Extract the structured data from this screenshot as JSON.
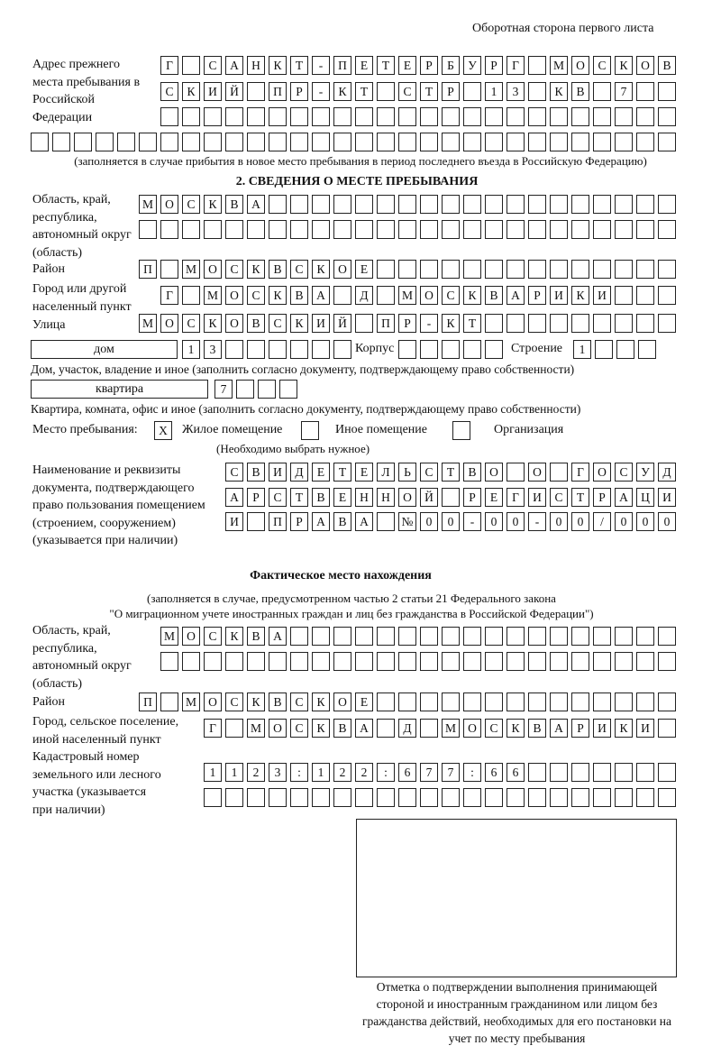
{
  "header": "Оборотная сторона первого листа",
  "prev_address": {
    "label": "Адрес прежнего места пребывания в Российской Федерации",
    "rows": [
      [
        "Г",
        "",
        "С",
        "А",
        "Н",
        "К",
        "Т",
        "-",
        "П",
        "Е",
        "Т",
        "Е",
        "Р",
        "Б",
        "У",
        "Р",
        "Г",
        "",
        "М",
        "О",
        "С",
        "К",
        "О",
        "В"
      ],
      [
        "С",
        "К",
        "И",
        "Й",
        "",
        "П",
        "Р",
        "-",
        "К",
        "Т",
        "",
        "С",
        "Т",
        "Р",
        "",
        "1",
        "3",
        "",
        "К",
        "В",
        "",
        "7",
        "",
        ""
      ],
      [
        "",
        "",
        "",
        "",
        "",
        "",
        "",
        "",
        "",
        "",
        "",
        "",
        "",
        "",
        "",
        "",
        "",
        "",
        "",
        "",
        "",
        "",
        "",
        ""
      ],
      [
        "",
        "",
        "",
        "",
        "",
        "",
        "",
        "",
        "",
        "",
        "",
        "",
        "",
        "",
        "",
        "",
        "",
        "",
        "",
        "",
        "",
        "",
        "",
        "",
        "",
        "",
        "",
        "",
        "",
        ""
      ]
    ],
    "note": "(заполняется в случае прибытия в новое место пребывания в период последнего въезда в Российскую Федерацию)"
  },
  "section2": {
    "title": "2. СВЕДЕНИЯ О МЕСТЕ ПРЕБЫВАНИЯ",
    "region_label": "Область, край, республика, автономный округ (область)",
    "region_rows": [
      [
        "М",
        "О",
        "С",
        "К",
        "В",
        "А",
        "",
        "",
        "",
        "",
        "",
        "",
        "",
        "",
        "",
        "",
        "",
        "",
        "",
        "",
        "",
        "",
        "",
        "",
        ""
      ],
      [
        "",
        "",
        "",
        "",
        "",
        "",
        "",
        "",
        "",
        "",
        "",
        "",
        "",
        "",
        "",
        "",
        "",
        "",
        "",
        "",
        "",
        "",
        "",
        "",
        ""
      ]
    ],
    "district_label": "Район",
    "district": [
      "П",
      "",
      "М",
      "О",
      "С",
      "К",
      "В",
      "С",
      "К",
      "О",
      "Е",
      "",
      "",
      "",
      "",
      "",
      "",
      "",
      "",
      "",
      "",
      "",
      "",
      "",
      ""
    ],
    "city_label": "Город или другой населенный пункт",
    "city": [
      "Г",
      "",
      "М",
      "О",
      "С",
      "К",
      "В",
      "А",
      "",
      "Д",
      "",
      "М",
      "О",
      "С",
      "К",
      "В",
      "А",
      "Р",
      "И",
      "К",
      "И",
      "",
      "",
      ""
    ],
    "street_label": "Улица",
    "street": [
      "М",
      "О",
      "С",
      "К",
      "О",
      "В",
      "С",
      "К",
      "И",
      "Й",
      "",
      "П",
      "Р",
      "-",
      "К",
      "Т",
      "",
      "",
      "",
      "",
      "",
      "",
      "",
      "",
      ""
    ],
    "house_type": "дом",
    "house": [
      "1",
      "3",
      "",
      "",
      "",
      "",
      "",
      ""
    ],
    "korpus_label": "Корпус",
    "korpus": [
      "",
      "",
      "",
      "",
      ""
    ],
    "building_label": "Строение",
    "building": [
      "1",
      "",
      "",
      ""
    ],
    "house_note": "Дом, участок, владение и иное (заполнить согласно документу, подтверждающему право собственности)",
    "flat_type": "квартира",
    "flat": [
      "7",
      "",
      "",
      ""
    ],
    "flat_note": "Квартира, комната, офис и иное (заполнить согласно документу, подтверждающему право собственности)",
    "stay_label": "Место пребывания:",
    "stay_options": [
      {
        "label": "Жилое помещение",
        "mark": "X"
      },
      {
        "label": "Иное помещение",
        "mark": ""
      },
      {
        "label": "Организация",
        "mark": ""
      }
    ],
    "stay_note": "(Необходимо выбрать нужное)",
    "doc_label": "Наименование и реквизиты документа, подтверждающего право пользования помещением (строением, сооружением) (указывается при наличии)",
    "doc_rows": [
      [
        "С",
        "В",
        "И",
        "Д",
        "Е",
        "Т",
        "Е",
        "Л",
        "Ь",
        "С",
        "Т",
        "В",
        "О",
        "",
        "О",
        "",
        "Г",
        "О",
        "С",
        "У",
        "Д"
      ],
      [
        "А",
        "Р",
        "С",
        "Т",
        "В",
        "Е",
        "Н",
        "Н",
        "О",
        "Й",
        "",
        "Р",
        "Е",
        "Г",
        "И",
        "С",
        "Т",
        "Р",
        "А",
        "Ц",
        "И"
      ],
      [
        "И",
        "",
        "П",
        "Р",
        "А",
        "В",
        "А",
        "",
        "№",
        "0",
        "0",
        "-",
        "0",
        "0",
        "-",
        "0",
        "0",
        "/",
        "0",
        "0",
        "0"
      ]
    ]
  },
  "actual": {
    "title": "Фактическое место нахождения",
    "note1": "(заполняется в случае, предусмотренном частью 2 статьи 21 Федерального закона",
    "note2": "\"О миграционном учете иностранных граждан и лиц без гражданства в Российской Федерации\")",
    "region_label": "Область, край, республика, автономный округ (область)",
    "region_rows": [
      [
        "М",
        "О",
        "С",
        "К",
        "В",
        "А",
        "",
        "",
        "",
        "",
        "",
        "",
        "",
        "",
        "",
        "",
        "",
        "",
        "",
        "",
        "",
        "",
        "",
        ""
      ],
      [
        "",
        "",
        "",
        "",
        "",
        "",
        "",
        "",
        "",
        "",
        "",
        "",
        "",
        "",
        "",
        "",
        "",
        "",
        "",
        "",
        "",
        "",
        "",
        ""
      ]
    ],
    "district_label": "Район",
    "district": [
      "П",
      "",
      "М",
      "О",
      "С",
      "К",
      "В",
      "С",
      "К",
      "О",
      "Е",
      "",
      "",
      "",
      "",
      "",
      "",
      "",
      "",
      "",
      "",
      "",
      "",
      "",
      ""
    ],
    "city_label": "Город, сельское поселение, иной населенный пункт",
    "city": [
      "Г",
      "",
      "М",
      "О",
      "С",
      "К",
      "В",
      "А",
      "",
      "Д",
      "",
      "М",
      "О",
      "С",
      "К",
      "В",
      "А",
      "Р",
      "И",
      "К",
      "И",
      ""
    ],
    "cadastre_label": "Кадастровый номер земельного или лесного участка (указывается при наличии)",
    "cadastre_rows": [
      [
        "1",
        "1",
        "2",
        "3",
        ":",
        "1",
        "2",
        "2",
        ":",
        "6",
        "7",
        "7",
        ":",
        "6",
        "6",
        "",
        "",
        "",
        "",
        "",
        "",
        ""
      ],
      [
        "",
        "",
        "",
        "",
        "",
        "",
        "",
        "",
        "",
        "",
        "",
        "",
        "",
        "",
        "",
        "",
        "",
        "",
        "",
        "",
        "",
        ""
      ]
    ]
  },
  "stamp_caption": "Отметка о подтверждении выполнения принимающей стороной и иностранным гражданином или лицом без гражданства действий, необходимых для его постановки на учет по месту пребывания"
}
